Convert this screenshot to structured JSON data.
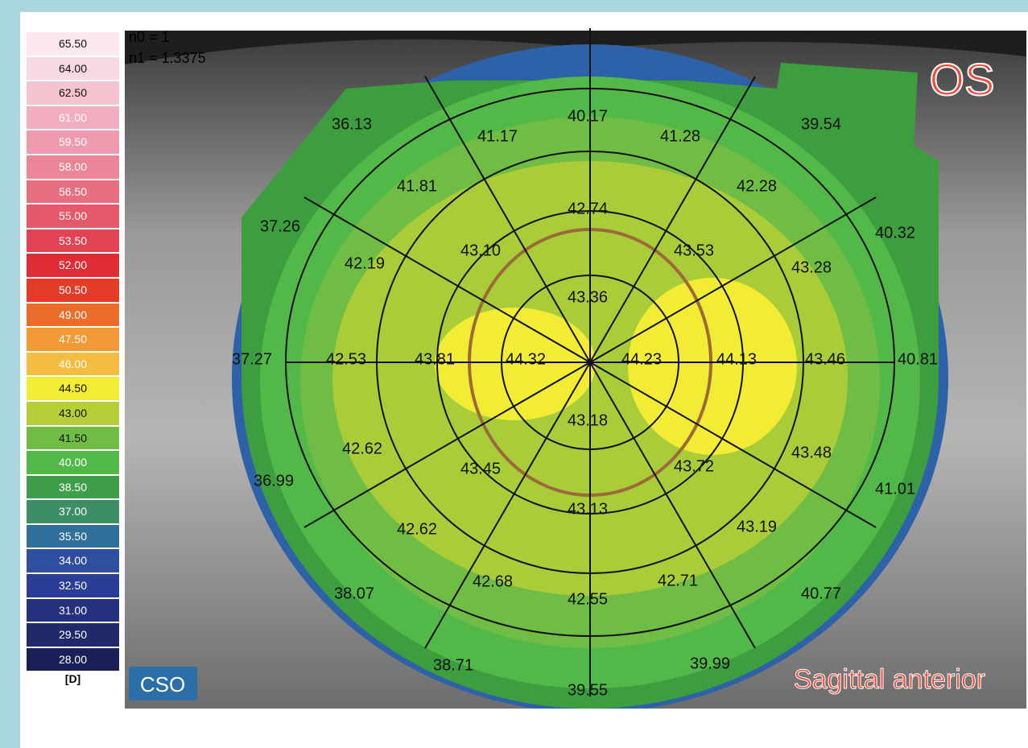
{
  "scale": {
    "steps": [
      {
        "label": "65.50",
        "color": "#fbe9ee"
      },
      {
        "label": "64.00",
        "color": "#f8d8e1"
      },
      {
        "label": "62.50",
        "color": "#f5c4d1"
      },
      {
        "label": "61.00",
        "color": "#f2aec0"
      },
      {
        "label": "59.50",
        "color": "#ef9aae"
      },
      {
        "label": "58.00",
        "color": "#ec8597"
      },
      {
        "label": "56.50",
        "color": "#e86f80"
      },
      {
        "label": "55.00",
        "color": "#e5596a"
      },
      {
        "label": "53.50",
        "color": "#e24254"
      },
      {
        "label": "52.00",
        "color": "#e02c36"
      },
      {
        "label": "50.50",
        "color": "#e53c2a"
      },
      {
        "label": "49.00",
        "color": "#eb6c2b"
      },
      {
        "label": "47.50",
        "color": "#f29a35"
      },
      {
        "label": "46.00",
        "color": "#f5bd40"
      },
      {
        "label": "44.50",
        "color": "#f2ec34"
      },
      {
        "label": "43.00",
        "color": "#b5cf38"
      },
      {
        "label": "41.50",
        "color": "#6fbd44"
      },
      {
        "label": "40.00",
        "color": "#52b848"
      },
      {
        "label": "38.50",
        "color": "#3f9e4c"
      },
      {
        "label": "37.00",
        "color": "#3d8d66"
      },
      {
        "label": "35.50",
        "color": "#2f6f9a"
      },
      {
        "label": "34.00",
        "color": "#2e4f9f"
      },
      {
        "label": "32.50",
        "color": "#2b3d94"
      },
      {
        "label": "31.00",
        "color": "#25307f"
      },
      {
        "label": "29.50",
        "color": "#202a6b"
      },
      {
        "label": "28.00",
        "color": "#1a2057"
      }
    ],
    "unit": "[D]"
  },
  "header": {
    "n0": "n0 = 1",
    "n1": "n1 = 1.3375",
    "eye": "OS",
    "map_type": "Sagittal anterior",
    "logo": "CSO"
  },
  "map_values": [
    "36.13",
    "41.17",
    "40.17",
    "41.28",
    "39.54",
    "41.81",
    "42.28",
    "37.26",
    "42.74",
    "40.32",
    "42.19",
    "43.10",
    "43.53",
    "43.28",
    "43.36",
    "37.27",
    "42.53",
    "43.81",
    "44.32",
    "44.23",
    "44.13",
    "43.46",
    "40.81",
    "43.18",
    "42.62",
    "43.45",
    "43.72",
    "43.48",
    "36.99",
    "41.01",
    "43.13",
    "42.62",
    "43.19",
    "42.68",
    "42.71",
    "38.07",
    "42.55",
    "40.77",
    "38.71",
    "39.99",
    "39.55"
  ]
}
